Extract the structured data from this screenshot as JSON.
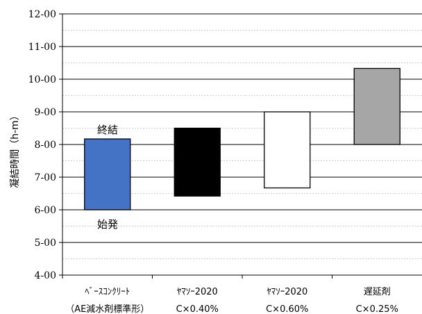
{
  "chart_data": {
    "type": "bar",
    "subtype": "floating-range",
    "ylabel": "凝結時間（h-m）",
    "ylim": [
      4,
      12
    ],
    "yticks": [
      {
        "value": 4,
        "label": "4-00"
      },
      {
        "value": 5,
        "label": "5-00"
      },
      {
        "value": 6,
        "label": "6-00"
      },
      {
        "value": 7,
        "label": "7-00"
      },
      {
        "value": 8,
        "label": "8-00"
      },
      {
        "value": 9,
        "label": "9-00"
      },
      {
        "value": 10,
        "label": "10-00"
      },
      {
        "value": 11,
        "label": "11-00"
      },
      {
        "value": 12,
        "label": "12-00"
      }
    ],
    "grid": {
      "major": true,
      "minor": true
    },
    "categories": [
      {
        "line1": "ﾍﾞｰｽｺﾝｸﾘｰﾄ",
        "line2": "（AE減水剤標準形）"
      },
      {
        "line1": "ﾔﾏｿｰ2020",
        "line2": "C×0.40%"
      },
      {
        "line1": "ﾔﾏｿｰ2020",
        "line2": "C×0.60%"
      },
      {
        "line1": "遅延剤",
        "line2": "C×0.25%"
      }
    ],
    "series": [
      {
        "category": 0,
        "start": 6.0,
        "end": 8.17,
        "color": "#4472c4"
      },
      {
        "category": 1,
        "start": 6.42,
        "end": 8.5,
        "color": "#000000"
      },
      {
        "category": 2,
        "start": 6.67,
        "end": 9.0,
        "color": "#ffffff"
      },
      {
        "category": 3,
        "start": 8.0,
        "end": 10.33,
        "color": "#a6a6a6"
      }
    ],
    "annotations": {
      "end_label": "終結",
      "start_label": "始発"
    }
  }
}
